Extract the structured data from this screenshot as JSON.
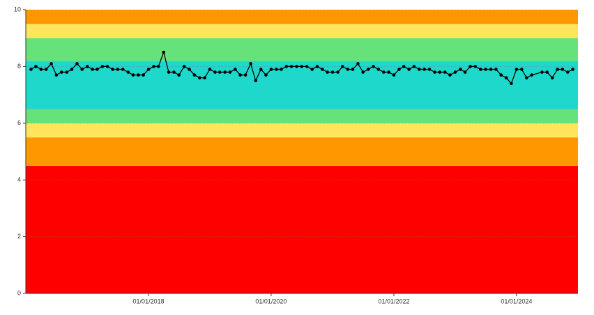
{
  "chart_data": {
    "type": "line",
    "color": "#000000",
    "bands": [
      {
        "from": 0,
        "to": 4.5,
        "color": "#ff0000"
      },
      {
        "from": 4.5,
        "to": 5.5,
        "color": "#ff9800"
      },
      {
        "from": 5.5,
        "to": 6,
        "color": "#ffe45c"
      },
      {
        "from": 6,
        "to": 6.5,
        "color": "#66e27a"
      },
      {
        "from": 6.5,
        "to": 8.2,
        "color": "#1ed8cc"
      },
      {
        "from": 8.2,
        "to": 9,
        "color": "#66e27a"
      },
      {
        "from": 9,
        "to": 9.5,
        "color": "#ffe45c"
      },
      {
        "from": 9.5,
        "to": 10,
        "color": "#ff9800"
      }
    ],
    "x": [
      "2016-02-01",
      "2016-03-01",
      "2016-04-01",
      "2016-05-01",
      "2016-06-01",
      "2016-07-01",
      "2016-08-01",
      "2016-09-01",
      "2016-10-01",
      "2016-11-01",
      "2016-12-01",
      "2017-01-01",
      "2017-02-01",
      "2017-03-01",
      "2017-04-01",
      "2017-05-01",
      "2017-06-01",
      "2017-07-01",
      "2017-08-01",
      "2017-09-01",
      "2017-10-01",
      "2017-11-01",
      "2017-12-01",
      "2018-01-01",
      "2018-02-01",
      "2018-03-01",
      "2018-04-01",
      "2018-05-01",
      "2018-06-01",
      "2018-07-01",
      "2018-08-01",
      "2018-09-01",
      "2018-10-01",
      "2018-11-01",
      "2018-12-01",
      "2019-01-01",
      "2019-02-01",
      "2019-03-01",
      "2019-04-01",
      "2019-05-01",
      "2019-06-01",
      "2019-07-01",
      "2019-08-01",
      "2019-09-01",
      "2019-10-01",
      "2019-11-01",
      "2019-12-01",
      "2020-01-01",
      "2020-02-01",
      "2020-03-01",
      "2020-04-01",
      "2020-05-01",
      "2020-06-01",
      "2020-07-01",
      "2020-08-01",
      "2020-09-01",
      "2020-10-01",
      "2020-11-01",
      "2020-12-01",
      "2021-01-01",
      "2021-02-01",
      "2021-03-01",
      "2021-04-01",
      "2021-05-01",
      "2021-06-01",
      "2021-07-01",
      "2021-08-01",
      "2021-09-01",
      "2021-10-01",
      "2021-11-01",
      "2021-12-01",
      "2022-01-01",
      "2022-02-01",
      "2022-03-01",
      "2022-04-01",
      "2022-05-01",
      "2022-06-01",
      "2022-07-01",
      "2022-08-01",
      "2022-09-01",
      "2022-10-01",
      "2022-11-01",
      "2022-12-01",
      "2023-01-01",
      "2023-02-01",
      "2023-03-01",
      "2023-04-01",
      "2023-05-01",
      "2023-06-01",
      "2023-07-01",
      "2023-08-01",
      "2023-09-01",
      "2023-10-01",
      "2023-11-01",
      "2023-12-01",
      "2024-01-01",
      "2024-02-01",
      "2024-03-01",
      "2024-04-01",
      "2024-06-01",
      "2024-07-01",
      "2024-08-01",
      "2024-09-01",
      "2024-10-01",
      "2024-11-01",
      "2024-12-01"
    ],
    "values": [
      7.9,
      8.0,
      7.9,
      7.9,
      8.1,
      7.7,
      7.8,
      7.8,
      7.9,
      8.1,
      7.9,
      8.0,
      7.9,
      7.9,
      8.0,
      8.0,
      7.9,
      7.9,
      7.9,
      7.8,
      7.7,
      7.7,
      7.7,
      7.9,
      8.0,
      8.0,
      8.5,
      7.8,
      7.8,
      7.7,
      8.0,
      7.9,
      7.7,
      7.6,
      7.6,
      7.9,
      7.8,
      7.8,
      7.8,
      7.8,
      7.9,
      7.7,
      7.7,
      8.1,
      7.5,
      7.9,
      7.7,
      7.9,
      7.9,
      7.9,
      8.0,
      8.0,
      8.0,
      8.0,
      8.0,
      7.9,
      8.0,
      7.9,
      7.8,
      7.8,
      7.8,
      8.0,
      7.9,
      7.9,
      8.1,
      7.8,
      7.9,
      8.0,
      7.9,
      7.8,
      7.8,
      7.7,
      7.9,
      8.0,
      7.9,
      8.0,
      7.9,
      7.9,
      7.9,
      7.8,
      7.8,
      7.8,
      7.7,
      7.8,
      7.9,
      7.8,
      8.0,
      8.0,
      7.9,
      7.9,
      7.9,
      7.9,
      7.7,
      7.6,
      7.4,
      7.9,
      7.9,
      7.6,
      7.7,
      7.8,
      7.8,
      7.6,
      7.9,
      7.9,
      7.8,
      7.9
    ],
    "xlim": [
      "2016-01-01",
      "2025-01-01"
    ],
    "xticks": [
      {
        "value": "2018-01-01",
        "label": "01/01/2018"
      },
      {
        "value": "2020-01-01",
        "label": "01/01/2020"
      },
      {
        "value": "2022-01-01",
        "label": "01/01/2022"
      },
      {
        "value": "2024-01-01",
        "label": "01/01/2024"
      }
    ],
    "ylim": [
      0,
      10
    ],
    "yticks": [
      0,
      2,
      4,
      6,
      8,
      10
    ],
    "grid": true
  }
}
